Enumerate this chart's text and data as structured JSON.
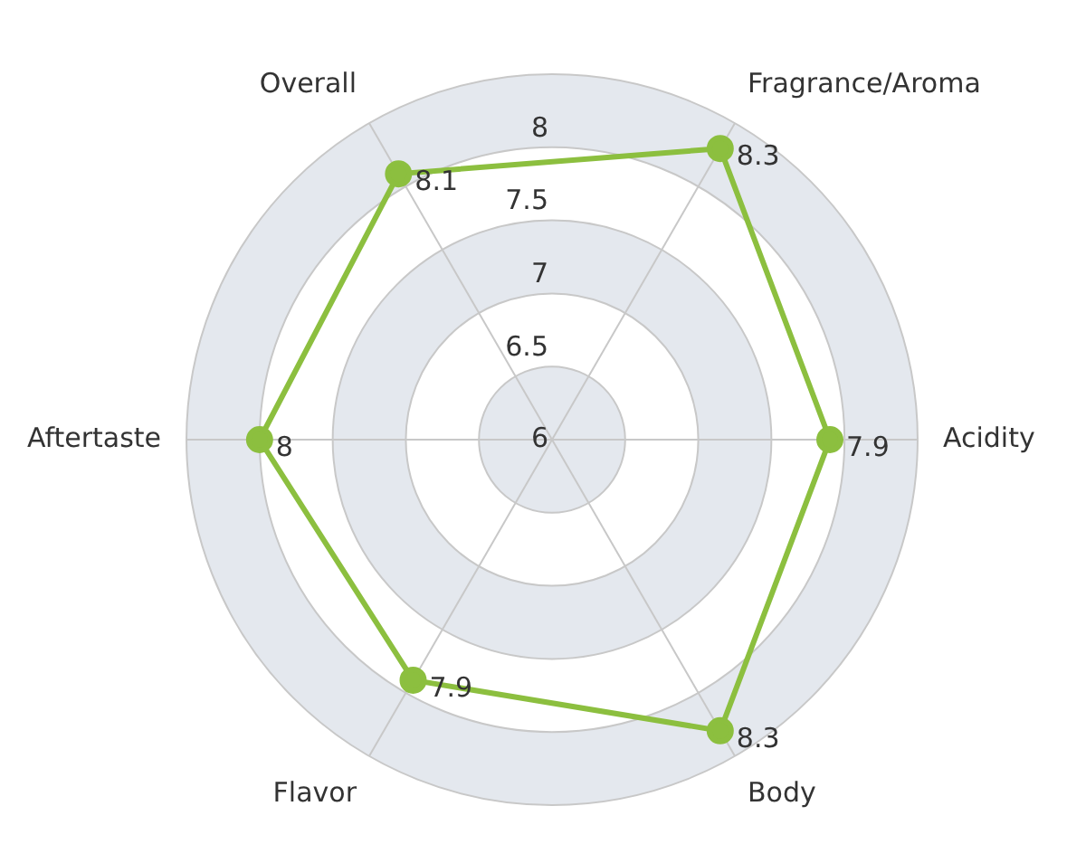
{
  "chart_data": {
    "type": "radar",
    "categories": [
      "Fragrance/Aroma",
      "Acidity",
      "Body",
      "Flavor",
      "Aftertaste",
      "Overall"
    ],
    "series": [
      {
        "color": "#8cbf3f",
        "values": [
          8.3,
          7.9,
          8.3,
          7.9,
          8,
          8.1
        ]
      }
    ],
    "ylim": [
      6,
      8.5
    ],
    "yticks": [
      6,
      6.5,
      7,
      7.5,
      8
    ],
    "grid": true,
    "legend": false,
    "marker": "circle",
    "line_style": "solid",
    "data_labels": true
  }
}
